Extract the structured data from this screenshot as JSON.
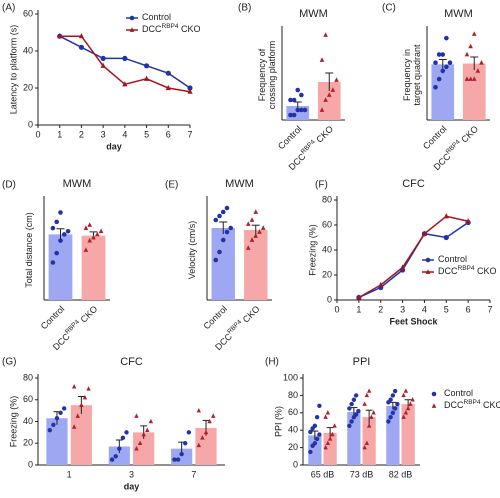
{
  "chart_data": [
    {
      "type": "line",
      "panel": "(A)",
      "xlabel": "day",
      "ylabel": "Latency to platform (s)",
      "x": [
        1,
        2,
        3,
        4,
        5,
        6,
        7
      ],
      "xlim": [
        0,
        7
      ],
      "xticks": [
        0,
        1,
        2,
        3,
        4,
        5,
        6,
        7
      ],
      "ylim": [
        0,
        60
      ],
      "yticks": [
        0,
        20,
        40,
        60
      ],
      "legend": "upper right",
      "series": [
        {
          "name": [
            "Control"
          ],
          "color": "#2233aa",
          "marker": "circle",
          "values": [
            48,
            42,
            36,
            36,
            32,
            28,
            20
          ]
        },
        {
          "name": [
            "DCC",
            "RBP4",
            " CKO"
          ],
          "color": "#a3161f",
          "marker": "triangle",
          "values": [
            48,
            48,
            32,
            22,
            25,
            20,
            18
          ]
        }
      ]
    },
    {
      "type": "bar",
      "panel": "(B)",
      "title": "MWM",
      "ylabel": [
        "Frequency of",
        "crossing platform"
      ],
      "ylim": [
        0,
        9
      ],
      "categories": [
        [
          "Control"
        ],
        [
          "DCC",
          "RBP4",
          " CKO"
        ]
      ],
      "values": [
        1.4,
        3.8
      ],
      "errors": [
        0.4,
        0.9
      ],
      "colors": [
        "#9ea8f2",
        "#f6a7a7"
      ],
      "point_colors": [
        "#2233aa",
        "#b0202a"
      ],
      "markers": [
        "circle",
        "triangle"
      ],
      "points": [
        [
          0.5,
          0.5,
          1,
          1,
          1,
          2,
          2,
          3,
          2.5
        ],
        [
          1,
          2,
          2.5,
          3,
          4,
          6,
          8.5
        ]
      ]
    },
    {
      "type": "bar",
      "panel": "(C)",
      "title": "MWM",
      "ylabel": [
        "Frequency in",
        "target quadrant"
      ],
      "ylim": [
        0,
        11
      ],
      "categories": [
        [
          "Control"
        ],
        [
          "DCC",
          "RBP4",
          " CKO"
        ]
      ],
      "values": [
        6.8,
        6.9
      ],
      "errors": [
        0.6,
        0.8
      ],
      "colors": [
        "#9ea8f2",
        "#f6a7a7"
      ],
      "point_colors": [
        "#2233aa",
        "#b0202a"
      ],
      "markers": [
        "circle",
        "triangle"
      ],
      "points": [
        [
          4,
          5,
          6,
          6.5,
          7,
          7,
          8,
          8,
          10
        ],
        [
          5,
          5,
          5,
          6,
          7,
          8,
          9,
          10.5
        ]
      ]
    },
    {
      "type": "bar",
      "panel": "(D)",
      "title": "MWM",
      "ylabel": [
        "Total distance (cm)"
      ],
      "ylim": [
        0,
        1600
      ],
      "categories": [
        [
          "Control"
        ],
        [
          "DCC",
          "RBP4",
          " CKO"
        ]
      ],
      "values": [
        1050,
        1030
      ],
      "errors": [
        90,
        60
      ],
      "colors": [
        "#9ea8f2",
        "#f6a7a7"
      ],
      "point_colors": [
        "#2233aa",
        "#b0202a"
      ],
      "markers": [
        "circle",
        "triangle"
      ],
      "points": [
        [
          600,
          750,
          950,
          1050,
          1100,
          1150,
          1250,
          1400
        ],
        [
          800,
          950,
          1000,
          1050,
          1100,
          1150,
          1200
        ]
      ]
    },
    {
      "type": "bar",
      "panel": "(E)",
      "title": "MWM",
      "ylabel": [
        "Velocity (cm/s)"
      ],
      "ylim": [
        0,
        25
      ],
      "categories": [
        [
          "Control"
        ],
        [
          "DCC",
          "RBP4",
          " CKO"
        ]
      ],
      "values": [
        18,
        17.5
      ],
      "errors": [
        1.5,
        1.2
      ],
      "colors": [
        "#9ea8f2",
        "#f6a7a7"
      ],
      "point_colors": [
        "#2233aa",
        "#b0202a"
      ],
      "markers": [
        "circle",
        "triangle"
      ],
      "points": [
        [
          10,
          12,
          15,
          17,
          18,
          20,
          21,
          22,
          23
        ],
        [
          13,
          15,
          16,
          17,
          18,
          19,
          20,
          22
        ]
      ]
    },
    {
      "type": "line",
      "panel": "(F)",
      "title": "CFC",
      "xlabel": "Feet Shock",
      "ylabel": "Freezing (%)",
      "x": [
        1,
        2,
        3,
        4,
        5,
        6
      ],
      "xlim": [
        0,
        7
      ],
      "xticks": [
        0,
        1,
        2,
        3,
        4,
        5,
        6,
        7
      ],
      "ylim": [
        0,
        80
      ],
      "yticks": [
        0,
        20,
        40,
        60,
        80
      ],
      "legend": "lower right",
      "series": [
        {
          "name": [
            "Control"
          ],
          "color": "#2233aa",
          "marker": "circle",
          "values": [
            2,
            10,
            24,
            53,
            50,
            62
          ]
        },
        {
          "name": [
            "DCC",
            "RBP4",
            " CKO"
          ],
          "color": "#a3161f",
          "marker": "triangle",
          "values": [
            2,
            12,
            26,
            53,
            67,
            63
          ]
        }
      ]
    },
    {
      "type": "grouped_bar",
      "panel": "(G)",
      "title": "CFC",
      "xlabel": "day",
      "ylabel": "Freezing (%)",
      "categories": [
        "1",
        "3",
        "7"
      ],
      "ylim": [
        0,
        80
      ],
      "yticks": [
        0,
        20,
        40,
        60,
        80
      ],
      "series": [
        {
          "name": [
            "Control"
          ],
          "color": "#9ea8f2",
          "point_color": "#2233aa",
          "marker": "circle",
          "values": [
            43,
            17,
            15
          ],
          "errors": [
            6,
            6,
            6
          ],
          "points": [
            [
              32,
              37,
              43,
              48,
              52
            ],
            [
              5,
              8,
              15,
              25,
              30
            ],
            [
              5,
              5,
              10,
              20,
              30
            ]
          ]
        },
        {
          "name": [
            "DCC",
            "RBP4",
            " CKO"
          ],
          "color": "#f6a7a7",
          "point_color": "#b0202a",
          "marker": "triangle",
          "values": [
            55,
            30,
            34
          ],
          "errors": [
            8,
            6,
            7
          ],
          "points": [
            [
              35,
              45,
              55,
              62,
              70,
              72
            ],
            [
              15,
              20,
              28,
              32,
              40,
              45
            ],
            [
              18,
              25,
              30,
              40,
              45,
              50
            ]
          ]
        }
      ]
    },
    {
      "type": "grouped_bar",
      "panel": "(H)",
      "title": "PPI",
      "ylabel": "PPI (%)",
      "categories": [
        "65 dB",
        "73 dB",
        "82 dB"
      ],
      "ylim": [
        0,
        100
      ],
      "yticks": [
        0,
        20,
        40,
        60,
        80,
        100
      ],
      "legend": "outside right",
      "series": [
        {
          "name": [
            "Control"
          ],
          "color": "#9ea8f2",
          "point_color": "#2233aa",
          "marker": "circle",
          "values": [
            34,
            61,
            68
          ],
          "errors": [
            5,
            5,
            4
          ],
          "points": [
            [
              15,
              22,
              25,
              30,
              35,
              38,
              42,
              45,
              55,
              68
            ],
            [
              45,
              50,
              55,
              58,
              62,
              65,
              70,
              75,
              80
            ],
            [
              50,
              55,
              60,
              65,
              70,
              72,
              75,
              80,
              85
            ]
          ]
        },
        {
          "name": [
            "DCC",
            "RBP4",
            " CKO"
          ],
          "color": "#f6a7a7",
          "point_color": "#b0202a",
          "marker": "triangle",
          "values": [
            37,
            55,
            70
          ],
          "errors": [
            6,
            8,
            5
          ],
          "points": [
            [
              20,
              25,
              30,
              35,
              45,
              55,
              60
            ],
            [
              20,
              25,
              45,
              55,
              60,
              70,
              80,
              85
            ],
            [
              55,
              60,
              65,
              70,
              75,
              80,
              85
            ]
          ]
        }
      ]
    }
  ]
}
